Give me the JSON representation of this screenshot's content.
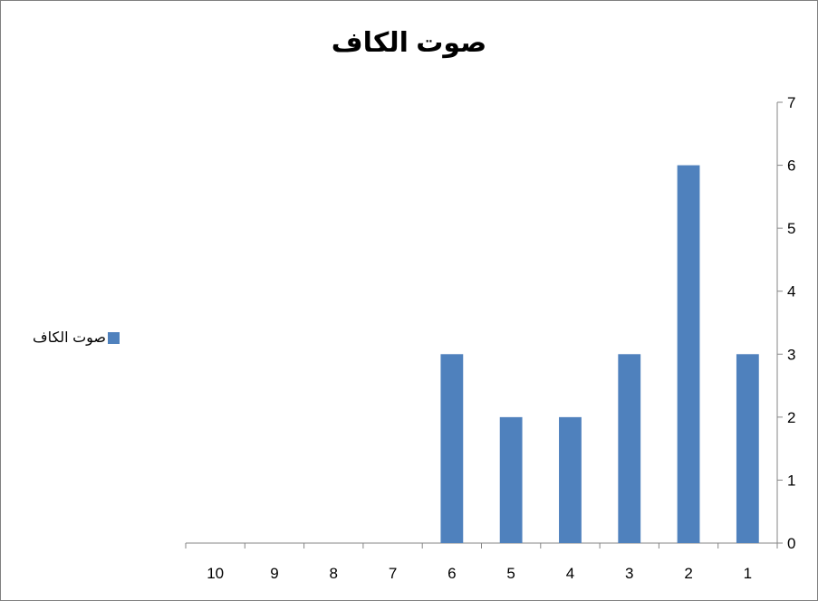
{
  "chart_data": {
    "type": "bar",
    "title": "صوت الكاف",
    "categories": [
      "1",
      "2",
      "3",
      "4",
      "5",
      "6",
      "7",
      "8",
      "9",
      "10"
    ],
    "series": [
      {
        "name": "صوت الكاف",
        "values": [
          3,
          6,
          3,
          2,
          2,
          3,
          null,
          null,
          null,
          null
        ]
      }
    ],
    "x_direction": "right-to-left",
    "y_axis_side": "right",
    "ylim": [
      0,
      7
    ],
    "yticks": [
      0,
      1,
      2,
      3,
      4,
      5,
      6,
      7
    ],
    "xlabel": "",
    "ylabel": "",
    "legend_position": "left",
    "grid": false,
    "bar_color": "#4f81bd",
    "axis_color": "#868686"
  }
}
